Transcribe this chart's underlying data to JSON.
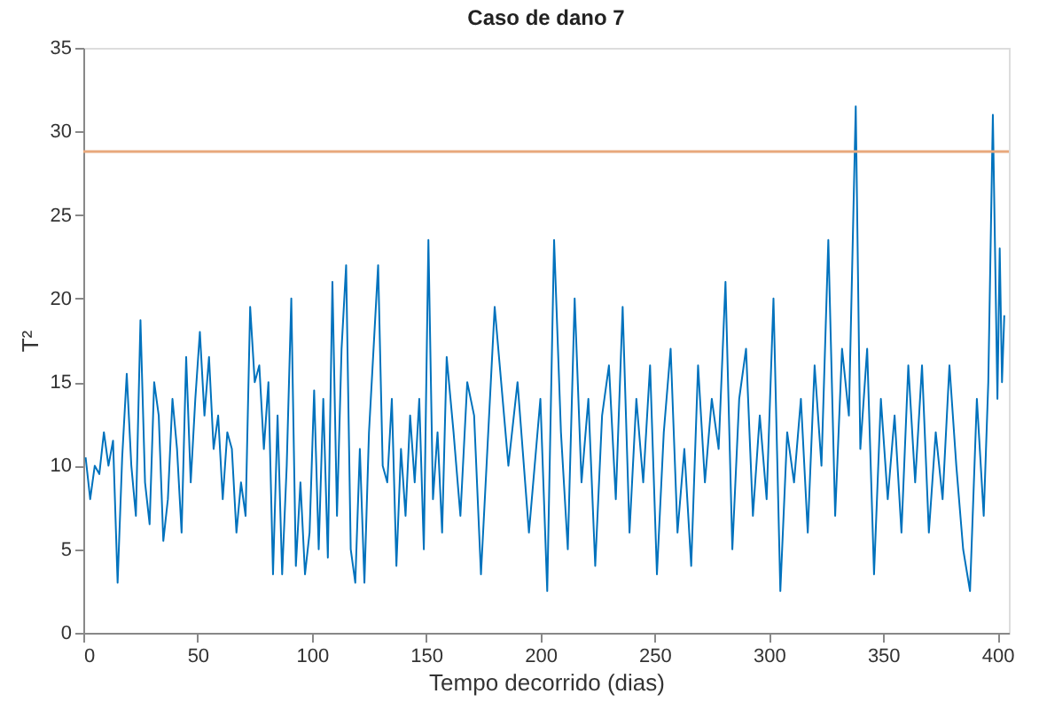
{
  "chart_data": {
    "type": "line",
    "title": "Caso de dano 7",
    "xlabel": "Tempo decorrido (dias)",
    "ylabel": "T²",
    "x": [
      1,
      3,
      5,
      7,
      9,
      11,
      13,
      15,
      17,
      19,
      21,
      23,
      25,
      27,
      29,
      31,
      33,
      35,
      37,
      39,
      41,
      43,
      45,
      47,
      49,
      51,
      53,
      55,
      57,
      59,
      61,
      63,
      65,
      67,
      69,
      71,
      73,
      75,
      77,
      79,
      81,
      83,
      85,
      87,
      89,
      91,
      93,
      95,
      97,
      99,
      101,
      103,
      105,
      107,
      109,
      111,
      113,
      115,
      117,
      119,
      121,
      123,
      125,
      127,
      129,
      131,
      133,
      135,
      137,
      139,
      141,
      143,
      145,
      147,
      149,
      151,
      153,
      155,
      157,
      159,
      162,
      165,
      168,
      171,
      174,
      180,
      186,
      190,
      195,
      200,
      203,
      206,
      209,
      212,
      215,
      218,
      221,
      224,
      227,
      230,
      233,
      236,
      239,
      242,
      245,
      248,
      251,
      254,
      257,
      260,
      263,
      266,
      269,
      272,
      275,
      278,
      281,
      284,
      287,
      290,
      293,
      296,
      299,
      302,
      305,
      308,
      311,
      314,
      317,
      320,
      323,
      326,
      329,
      332,
      335,
      338,
      340,
      343,
      346,
      349,
      352,
      355,
      358,
      361,
      364,
      367,
      370,
      373,
      376,
      379,
      382,
      385,
      388,
      391,
      394,
      396,
      398,
      400,
      401,
      402,
      403
    ],
    "series": [
      {
        "color": "#0072bd",
        "values": [
          10.5,
          8,
          10,
          9.5,
          12,
          10,
          11.5,
          3,
          10.5,
          15.5,
          10,
          7,
          18.7,
          9,
          6.5,
          15,
          13,
          5.5,
          8,
          14,
          11,
          6,
          16.5,
          9,
          14,
          18,
          13,
          16.5,
          11,
          13,
          8,
          12,
          11,
          6,
          9,
          7,
          19.5,
          15,
          16,
          11,
          15,
          3.5,
          13,
          3.5,
          10,
          20,
          4,
          9,
          3.5,
          6,
          14.5,
          5,
          14,
          4.5,
          21,
          7,
          17,
          22,
          5,
          3,
          11,
          3,
          12,
          17,
          22,
          10,
          9,
          14,
          4,
          11,
          7,
          13,
          9,
          14,
          5,
          23.5,
          8,
          12,
          6,
          16.5,
          12,
          7,
          15,
          13,
          3.5,
          19.5,
          10,
          15,
          6,
          14,
          2.5,
          23.5,
          12,
          5,
          20,
          9,
          14,
          4,
          13,
          16,
          8,
          19.5,
          6,
          14,
          9,
          16,
          3.5,
          12,
          17,
          6,
          11,
          4,
          16,
          9,
          14,
          11,
          21,
          5,
          14,
          17,
          7,
          13,
          8,
          20,
          2.5,
          12,
          9,
          14,
          6,
          16,
          10,
          23.5,
          7,
          17,
          13,
          31.5,
          11,
          17,
          3.5,
          14,
          8,
          13,
          6,
          16,
          9,
          16,
          6,
          12,
          8,
          16,
          10,
          5,
          2.5,
          14,
          7,
          15,
          31,
          14,
          23,
          15,
          19
        ]
      }
    ],
    "xlim": [
      0,
      405
    ],
    "xticks": [
      0,
      50,
      100,
      150,
      200,
      250,
      300,
      350,
      400
    ],
    "ylim": [
      0,
      35
    ],
    "yticks": [
      0,
      5,
      10,
      15,
      20,
      25,
      30,
      35
    ],
    "ref_lines": [
      {
        "axis": "y",
        "value": 28.8,
        "color": "#e8a87c"
      }
    ],
    "grid": false,
    "marker": "none",
    "line_style": "solid"
  }
}
